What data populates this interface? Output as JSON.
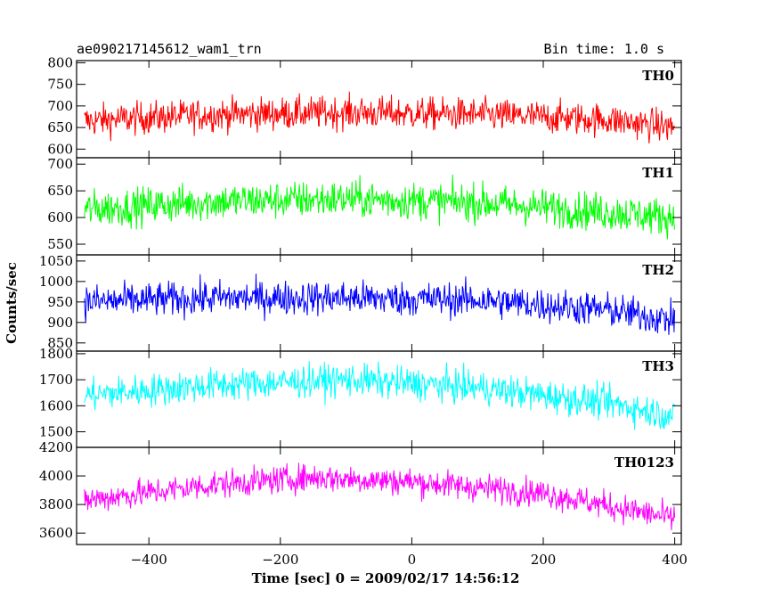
{
  "title": "ae090217145612_wam1_trn",
  "bin_time": "Bin time: 1.0 s",
  "chart_data": {
    "type": "line",
    "xlabel": "Time [sec] 0 = 2009/02/17 14:56:12",
    "ylabel": "Counts/sec",
    "xlim": [
      -510,
      410
    ],
    "x_ticks": [
      -400,
      -200,
      0,
      200,
      400
    ],
    "x_tick_labels": [
      "−400",
      "−200",
      "0",
      "200",
      "400"
    ],
    "x_range": [
      -498,
      400
    ],
    "grid": false,
    "panels": [
      {
        "name": "TH0",
        "color": "#ff0000",
        "ylim": [
          580,
          805
        ],
        "y_ticks": [
          600,
          650,
          700,
          750,
          800
        ],
        "trend": [
          [
            -498,
            665
          ],
          [
            -300,
            680
          ],
          [
            -100,
            685
          ],
          [
            100,
            680
          ],
          [
            300,
            668
          ],
          [
            400,
            650
          ]
        ],
        "noise": 27
      },
      {
        "name": "TH1",
        "color": "#00ff00",
        "ylim": [
          530,
          712
        ],
        "y_ticks": [
          550,
          600,
          650,
          700
        ],
        "trend": [
          [
            -498,
            615
          ],
          [
            -300,
            630
          ],
          [
            -100,
            635
          ],
          [
            100,
            628
          ],
          [
            300,
            610
          ],
          [
            400,
            600
          ]
        ],
        "noise": 25
      },
      {
        "name": "TH2",
        "color": "#0000ff",
        "ylim": [
          830,
          1065
        ],
        "y_ticks": [
          850,
          900,
          950,
          1000,
          1050
        ],
        "trend": [
          [
            -498,
            950
          ],
          [
            -300,
            960
          ],
          [
            -100,
            960
          ],
          [
            100,
            955
          ],
          [
            300,
            930
          ],
          [
            400,
            905
          ]
        ],
        "noise": 30
      },
      {
        "name": "TH3",
        "color": "#00ffff",
        "ylim": [
          1440,
          1810
        ],
        "y_ticks": [
          1500,
          1600,
          1700,
          1800
        ],
        "trend": [
          [
            -498,
            1640
          ],
          [
            -300,
            1680
          ],
          [
            -100,
            1700
          ],
          [
            100,
            1670
          ],
          [
            300,
            1610
          ],
          [
            400,
            1560
          ]
        ],
        "noise": 45
      },
      {
        "name": "TH0123",
        "color": "#ff00ff",
        "ylim": [
          3520,
          4200
        ],
        "y_ticks": [
          3600,
          3800,
          4000,
          4200
        ],
        "trend": [
          [
            -498,
            3830
          ],
          [
            -300,
            3940
          ],
          [
            -150,
            3990
          ],
          [
            0,
            3960
          ],
          [
            200,
            3880
          ],
          [
            300,
            3790
          ],
          [
            400,
            3700
          ]
        ],
        "noise": 70
      }
    ]
  }
}
